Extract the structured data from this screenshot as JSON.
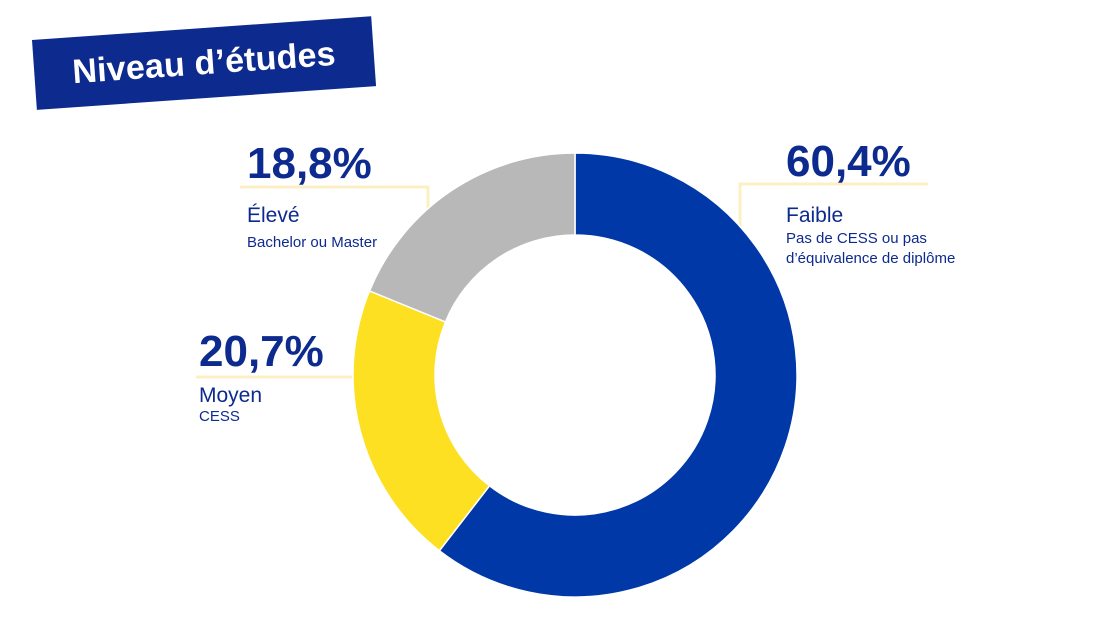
{
  "chart_data": {
    "type": "pie",
    "title": "Niveau d’études",
    "slices": [
      {
        "label": "Faible",
        "description": "Pas de CESS ou pas d’équivalence de diplôme",
        "value": 60.4,
        "display": "60,4%",
        "color": "#0038a8"
      },
      {
        "label": "Moyen",
        "description": "CESS",
        "value": 20.7,
        "display": "20,7%",
        "color": "#fde021"
      },
      {
        "label": "Élevé",
        "description": "Bachelor ou Master",
        "value": 18.8,
        "display": "18,8%",
        "color": "#b8b8b8"
      }
    ]
  }
}
